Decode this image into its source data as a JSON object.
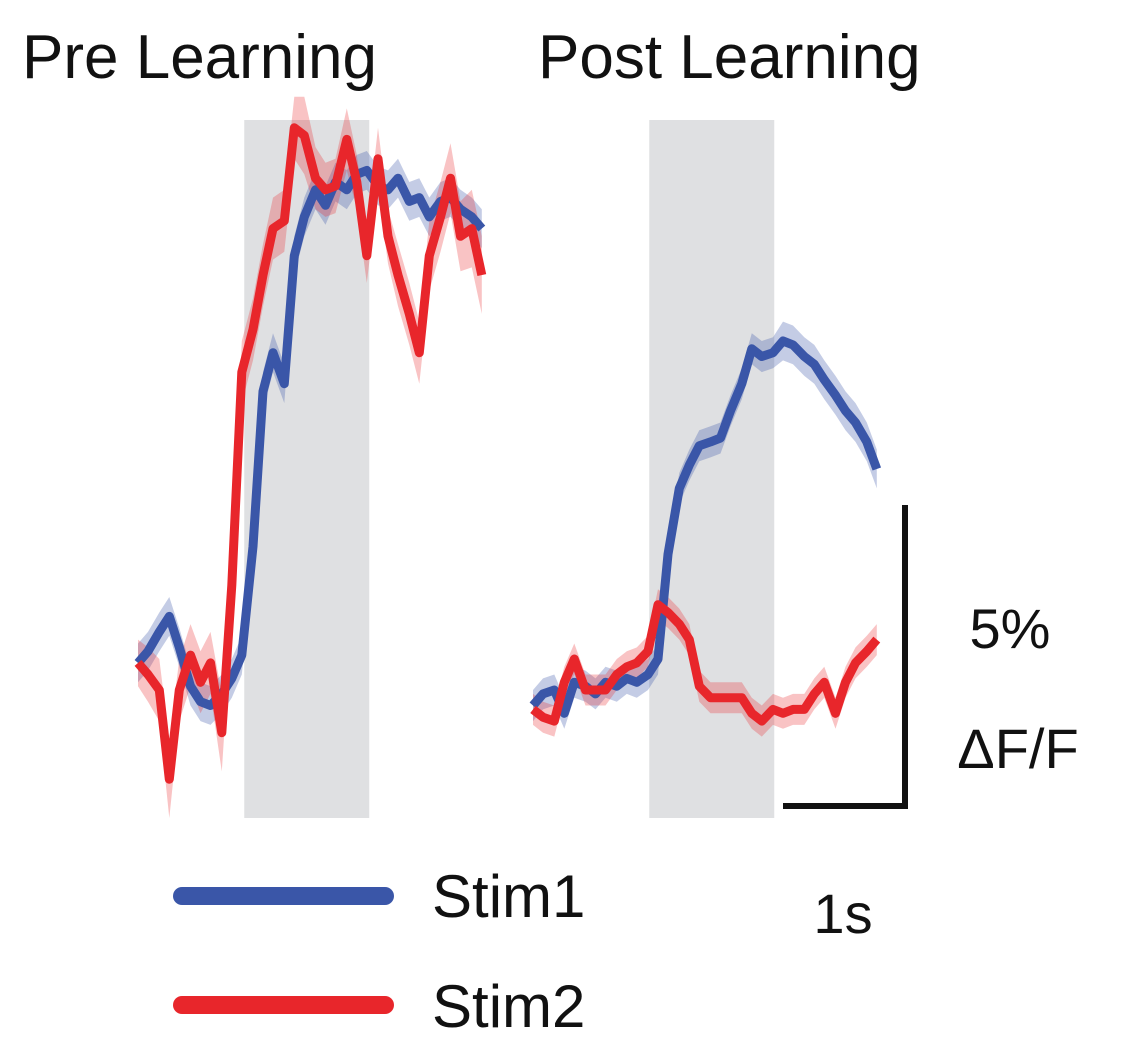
{
  "figure": {
    "scale_bar": {
      "y_label_top": "5%",
      "y_label_bottom": "ΔF/F",
      "x_label": "1s",
      "y_value_percent": 5,
      "x_value_seconds": 1
    },
    "legend": [
      {
        "label": "Stim1",
        "color": "#3a56a8"
      },
      {
        "label": "Stim2",
        "color": "#e8262b"
      }
    ]
  },
  "chart_data": [
    {
      "type": "line",
      "title": "Pre Learning",
      "xlabel": "",
      "ylabel": "",
      "x_units": "s",
      "y_units": "%ΔF/F",
      "xlim": [
        0,
        2.8
      ],
      "ylim": [
        -4.0,
        14.0
      ],
      "stimulus_window": [
        0.85,
        1.85
      ],
      "grid": false,
      "series": [
        {
          "name": "Stim1",
          "color": "#3a56a8",
          "x": [
            0.0,
            0.08,
            0.17,
            0.25,
            0.33,
            0.42,
            0.5,
            0.58,
            0.67,
            0.75,
            0.83,
            0.92,
            1.0,
            1.08,
            1.17,
            1.25,
            1.33,
            1.42,
            1.5,
            1.58,
            1.67,
            1.75,
            1.83,
            1.92,
            2.0,
            2.08,
            2.17,
            2.25,
            2.33,
            2.42,
            2.5,
            2.58,
            2.67,
            2.75
          ],
          "y": [
            0.0,
            0.3,
            0.8,
            1.2,
            0.4,
            -0.6,
            -1.0,
            -1.1,
            -0.8,
            -0.4,
            0.2,
            3.0,
            7.0,
            8.0,
            7.2,
            10.5,
            11.5,
            12.2,
            11.8,
            12.4,
            12.2,
            12.6,
            12.7,
            12.3,
            12.2,
            12.5,
            11.9,
            12.0,
            11.5,
            11.9,
            12.0,
            11.7,
            11.5,
            11.2
          ],
          "error": [
            0.5,
            0.5,
            0.5,
            0.5,
            0.5,
            0.5,
            0.5,
            0.5,
            0.5,
            0.5,
            0.5,
            0.5,
            0.5,
            0.5,
            0.5,
            0.5,
            0.5,
            0.5,
            0.5,
            0.5,
            0.5,
            0.5,
            0.5,
            0.5,
            0.5,
            0.5,
            0.5,
            0.5,
            0.5,
            0.5,
            0.5,
            0.5,
            0.5,
            0.5
          ]
        },
        {
          "name": "Stim2",
          "color": "#e8262b",
          "x": [
            0.0,
            0.08,
            0.17,
            0.25,
            0.33,
            0.42,
            0.5,
            0.58,
            0.67,
            0.75,
            0.83,
            0.92,
            1.0,
            1.08,
            1.17,
            1.25,
            1.33,
            1.42,
            1.5,
            1.58,
            1.67,
            1.75,
            1.83,
            1.92,
            2.0,
            2.08,
            2.17,
            2.25,
            2.33,
            2.42,
            2.5,
            2.58,
            2.67,
            2.75
          ],
          "y": [
            0.0,
            -0.3,
            -0.7,
            -3.0,
            -0.7,
            0.2,
            -0.5,
            0.0,
            -1.8,
            2.0,
            7.5,
            8.6,
            10.0,
            11.2,
            11.4,
            13.8,
            13.6,
            12.5,
            12.2,
            12.3,
            13.5,
            12.4,
            10.5,
            13.0,
            11.0,
            10.0,
            9.0,
            8.0,
            10.5,
            11.5,
            12.5,
            11.0,
            11.2,
            10.0
          ],
          "error": [
            0.6,
            0.7,
            0.8,
            1.0,
            0.8,
            0.8,
            0.8,
            0.8,
            1.0,
            0.8,
            0.8,
            0.8,
            0.8,
            0.8,
            0.8,
            0.8,
            1.0,
            0.8,
            0.7,
            0.7,
            0.8,
            0.7,
            0.7,
            0.8,
            0.7,
            0.8,
            0.8,
            0.8,
            0.9,
            0.9,
            0.9,
            0.9,
            1.0,
            1.0
          ]
        }
      ]
    },
    {
      "type": "line",
      "title": "Post Learning",
      "xlabel": "",
      "ylabel": "",
      "x_units": "s",
      "y_units": "%ΔF/F",
      "xlim": [
        0,
        2.8
      ],
      "ylim": [
        -4.0,
        14.0
      ],
      "stimulus_window": [
        0.93,
        1.93
      ],
      "grid": false,
      "series": [
        {
          "name": "Stim1",
          "color": "#3a56a8",
          "x": [
            0.0,
            0.08,
            0.17,
            0.25,
            0.33,
            0.42,
            0.5,
            0.58,
            0.67,
            0.75,
            0.83,
            0.92,
            1.0,
            1.08,
            1.17,
            1.25,
            1.33,
            1.42,
            1.5,
            1.58,
            1.67,
            1.75,
            1.83,
            1.92,
            2.0,
            2.08,
            2.17,
            2.25,
            2.33,
            2.42,
            2.5,
            2.58,
            2.67,
            2.75
          ],
          "y": [
            -1.1,
            -0.8,
            -0.7,
            -1.3,
            -0.5,
            -0.6,
            -0.8,
            -0.5,
            -0.6,
            -0.4,
            -0.5,
            -0.3,
            0.1,
            2.8,
            4.5,
            5.1,
            5.6,
            5.7,
            5.8,
            6.5,
            7.2,
            8.1,
            7.9,
            8.0,
            8.3,
            8.2,
            7.9,
            7.7,
            7.3,
            6.9,
            6.5,
            6.2,
            5.7,
            5.0
          ],
          "error": [
            0.4,
            0.4,
            0.4,
            0.4,
            0.4,
            0.4,
            0.4,
            0.4,
            0.4,
            0.4,
            0.4,
            0.4,
            0.4,
            0.4,
            0.4,
            0.4,
            0.4,
            0.4,
            0.4,
            0.4,
            0.4,
            0.4,
            0.4,
            0.4,
            0.5,
            0.5,
            0.5,
            0.5,
            0.5,
            0.5,
            0.5,
            0.5,
            0.5,
            0.5
          ]
        },
        {
          "name": "Stim2",
          "color": "#e8262b",
          "x": [
            0.0,
            0.08,
            0.17,
            0.25,
            0.33,
            0.42,
            0.5,
            0.58,
            0.67,
            0.75,
            0.83,
            0.92,
            1.0,
            1.08,
            1.17,
            1.25,
            1.33,
            1.42,
            1.5,
            1.58,
            1.67,
            1.75,
            1.83,
            1.92,
            2.0,
            2.08,
            2.17,
            2.25,
            2.33,
            2.42,
            2.5,
            2.58,
            2.67,
            2.75
          ],
          "y": [
            -1.2,
            -1.4,
            -1.5,
            -0.5,
            0.1,
            -0.7,
            -0.7,
            -0.7,
            -0.3,
            -0.1,
            0.0,
            0.3,
            1.5,
            1.3,
            1.0,
            0.6,
            -0.6,
            -0.9,
            -0.9,
            -0.9,
            -0.9,
            -1.3,
            -1.5,
            -1.2,
            -1.3,
            -1.2,
            -1.2,
            -0.8,
            -0.5,
            -1.3,
            -0.5,
            0.0,
            0.3,
            0.6
          ],
          "error": [
            0.4,
            0.4,
            0.4,
            0.4,
            0.4,
            0.4,
            0.4,
            0.4,
            0.4,
            0.4,
            0.4,
            0.4,
            0.4,
            0.4,
            0.4,
            0.4,
            0.4,
            0.4,
            0.4,
            0.4,
            0.4,
            0.4,
            0.4,
            0.4,
            0.4,
            0.4,
            0.4,
            0.4,
            0.4,
            0.4,
            0.4,
            0.4,
            0.4,
            0.4
          ]
        }
      ]
    }
  ]
}
